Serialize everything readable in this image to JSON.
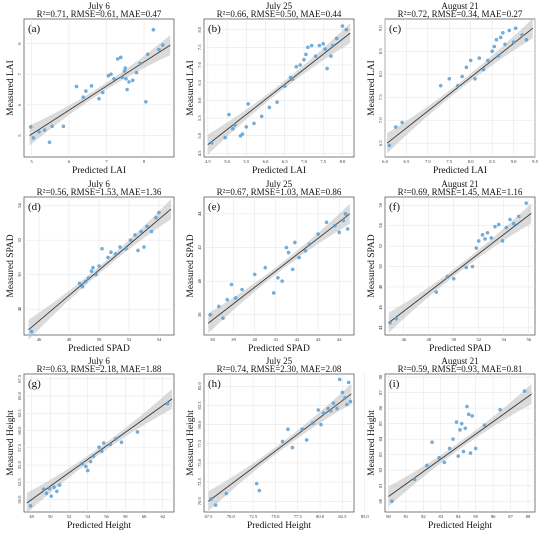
{
  "colors": {
    "points": "#5b9fd3",
    "fit_line": "#3a3a3a",
    "band": "#bdbdbd",
    "grid": "#e3e3e3"
  },
  "chart_data": [
    {
      "type": "scatter",
      "letter": "(a)",
      "title": "July 6",
      "metrics": "R²=0.71, RMSE=0.61, MAE=0.47",
      "xlabel": "Predicted LAI",
      "ylabel": "Measured LAI",
      "xlim": [
        4.8,
        8.8
      ],
      "ylim": [
        4.3,
        8.8
      ],
      "xticks": [
        "5",
        "6",
        "7",
        "8"
      ],
      "xtick_values": [
        5,
        6,
        7,
        8
      ],
      "yticks": [
        "5",
        "6",
        "7",
        "8"
      ],
      "ytick_values": [
        5,
        6,
        7,
        8
      ],
      "fit": {
        "x": [
          4.95,
          8.7
        ],
        "y": [
          5.0,
          7.95
        ]
      },
      "x": [
        4.98,
        5.05,
        5.2,
        5.35,
        5.48,
        5.55,
        5.85,
        6.2,
        6.38,
        6.45,
        6.6,
        6.8,
        6.9,
        7.05,
        7.12,
        7.2,
        7.3,
        7.38,
        7.42,
        7.48,
        7.5,
        7.52,
        7.55,
        7.6,
        7.7,
        7.8,
        7.9,
        8.05,
        8.1,
        8.25,
        8.4,
        8.5
      ],
      "y": [
        5.28,
        4.92,
        5.12,
        5.18,
        4.78,
        5.3,
        5.3,
        6.6,
        6.25,
        6.45,
        6.62,
        6.2,
        6.4,
        6.95,
        7.0,
        6.85,
        7.5,
        7.55,
        6.9,
        7.1,
        7.2,
        6.85,
        6.5,
        6.75,
        6.8,
        7.05,
        7.35,
        6.1,
        7.65,
        8.45,
        7.8,
        7.95
      ]
    },
    {
      "type": "scatter",
      "letter": "(b)",
      "title": "July 25",
      "metrics": "R²=0.66, RMSE=0.50, MAE=0.44",
      "xlabel": "Predicted LAI",
      "ylabel": "Measured LAI",
      "xlim": [
        4.4,
        8.3
      ],
      "ylim": [
        4.4,
        8.3
      ],
      "xticks": [
        "4.5",
        "5.0",
        "5.5",
        "6.0",
        "6.5",
        "7.0",
        "7.5",
        "8.0"
      ],
      "xtick_values": [
        4.5,
        5.0,
        5.5,
        6.0,
        6.5,
        7.0,
        7.5,
        8.0
      ],
      "yticks": [
        "4.5",
        "5.0",
        "5.5",
        "6.0",
        "6.5",
        "7.0",
        "7.5",
        "8.0"
      ],
      "ytick_values": [
        4.5,
        5.0,
        5.5,
        6.0,
        6.5,
        7.0,
        7.5,
        8.0
      ],
      "fit": {
        "x": [
          4.5,
          8.2
        ],
        "y": [
          4.75,
          7.9
        ]
      },
      "x": [
        4.6,
        4.95,
        5.05,
        5.15,
        5.2,
        5.35,
        5.4,
        5.5,
        5.55,
        5.7,
        5.9,
        6.1,
        6.3,
        6.5,
        6.65,
        6.7,
        6.8,
        6.9,
        7.0,
        7.05,
        7.1,
        7.2,
        7.3,
        7.4,
        7.5,
        7.55,
        7.6,
        7.7,
        7.75,
        7.85,
        8.0,
        8.1
      ],
      "y": [
        4.8,
        4.95,
        5.6,
        5.2,
        5.3,
        5.0,
        5.05,
        5.25,
        5.9,
        5.35,
        5.55,
        5.8,
        5.95,
        6.4,
        6.65,
        6.6,
        6.95,
        7.0,
        7.15,
        7.3,
        7.5,
        7.55,
        7.25,
        7.55,
        7.6,
        7.45,
        6.9,
        7.25,
        7.55,
        7.75,
        8.1,
        8.0
      ]
    },
    {
      "type": "scatter",
      "letter": "(c)",
      "title": "August 21",
      "metrics": "R²=0.72, RMSE=0.34, MAE=0.27",
      "xlabel": "Predicted LAI",
      "ylabel": "Measured LAI",
      "xlim": [
        6.0,
        9.5
      ],
      "ylim": [
        6.2,
        9.2
      ],
      "xticks": [
        "6.0",
        "6.5",
        "7.0",
        "7.5",
        "8.0",
        "8.5",
        "9.0",
        "9.5"
      ],
      "xtick_values": [
        6.0,
        6.5,
        7.0,
        7.5,
        8.0,
        8.5,
        9.0,
        9.5
      ],
      "yticks": [
        "6.5",
        "7.0",
        "7.5",
        "8.0",
        "8.5",
        "9.0"
      ],
      "ytick_values": [
        6.5,
        7.0,
        7.5,
        8.0,
        8.5,
        9.0
      ],
      "fit": {
        "x": [
          6.05,
          9.45
        ],
        "y": [
          6.5,
          9.0
        ]
      },
      "x": [
        6.1,
        6.25,
        6.4,
        7.3,
        7.5,
        7.7,
        7.8,
        7.9,
        8.0,
        8.1,
        8.2,
        8.3,
        8.4,
        8.5,
        8.55,
        8.6,
        8.65,
        8.7,
        8.75,
        8.8,
        8.9,
        9.0,
        9.05,
        9.2,
        9.3
      ],
      "y": [
        6.45,
        6.85,
        6.95,
        7.75,
        7.9,
        7.75,
        7.95,
        8.15,
        8.3,
        7.9,
        8.35,
        8.1,
        8.3,
        8.5,
        8.6,
        8.75,
        8.4,
        8.8,
        8.9,
        8.65,
        8.95,
        8.7,
        9.0,
        8.85,
        8.75
      ]
    },
    {
      "type": "scatter",
      "letter": "(d)",
      "title": "July 6",
      "metrics": "R²=0.56, RMSE=1.53, MAE=1.36",
      "xlabel": "Predicted SPAD",
      "ylabel": "Measured SPAD",
      "xlim": [
        45,
        55
      ],
      "ylim": [
        46.5,
        54.5
      ],
      "xticks": [
        "46",
        "48",
        "50",
        "52",
        "54"
      ],
      "xtick_values": [
        46,
        48,
        50,
        52,
        54
      ],
      "yticks": [
        "48",
        "50",
        "52",
        "54"
      ],
      "ytick_values": [
        48,
        50,
        52,
        54
      ],
      "fit": {
        "x": [
          45.3,
          54.8
        ],
        "y": [
          46.8,
          53.8
        ]
      },
      "x": [
        45.5,
        48.7,
        48.9,
        49.1,
        49.3,
        49.5,
        49.6,
        49.8,
        50.0,
        50.2,
        50.6,
        50.8,
        51.1,
        51.4,
        51.8,
        52.1,
        52.4,
        52.6,
        52.8,
        53.0,
        53.2,
        53.5,
        53.8,
        54.0
      ],
      "y": [
        46.7,
        49.5,
        49.3,
        49.6,
        49.8,
        50.2,
        50.4,
        50.0,
        50.5,
        51.5,
        51.0,
        51.3,
        51.2,
        51.6,
        51.5,
        52.0,
        52.3,
        51.4,
        52.5,
        51.6,
        52.8,
        52.5,
        53.3,
        53.6
      ]
    },
    {
      "type": "scatter",
      "letter": "(e)",
      "title": "July 25",
      "metrics": "R²=0.67, RMSE=1.03, MAE=0.86",
      "xlabel": "Predicted SPAD",
      "ylabel": "Measured SPAD",
      "xlim": [
        37.6,
        44.7
      ],
      "ylim": [
        36.8,
        45.0
      ],
      "xticks": [
        "38",
        "39",
        "40",
        "41",
        "42",
        "43",
        "44"
      ],
      "xtick_values": [
        38,
        39,
        40,
        41,
        42,
        43,
        44
      ],
      "yticks": [
        "38",
        "40",
        "42",
        "44"
      ],
      "ytick_values": [
        38,
        40,
        42,
        44
      ],
      "fit": {
        "x": [
          37.8,
          44.5
        ],
        "y": [
          37.5,
          44.0
        ]
      },
      "x": [
        37.9,
        38.3,
        38.5,
        38.7,
        38.9,
        39.1,
        39.4,
        40.0,
        40.5,
        40.9,
        41.1,
        41.3,
        41.5,
        41.6,
        41.8,
        41.9,
        42.1,
        42.4,
        42.6,
        43.0,
        43.4,
        43.8,
        44.0,
        44.2,
        44.3,
        44.4
      ],
      "y": [
        38.0,
        38.5,
        37.8,
        38.9,
        39.8,
        39.0,
        39.5,
        40.4,
        40.8,
        39.3,
        40.2,
        40.0,
        42.0,
        41.7,
        40.7,
        42.3,
        41.4,
        41.8,
        42.2,
        42.8,
        43.5,
        43.3,
        42.9,
        43.6,
        44.0,
        43.1
      ]
    },
    {
      "type": "scatter",
      "letter": "(f)",
      "title": "August 21",
      "metrics": "R²=0.69, RMSE=1.45, MAE=1.16",
      "xlabel": "Predicted SPAD",
      "ylabel": "Measured SPAD",
      "xlim": [
        44.5,
        56.5
      ],
      "ylim": [
        43.3,
        56.8
      ],
      "xticks": [
        "46",
        "48",
        "50",
        "52",
        "54",
        "56"
      ],
      "xtick_values": [
        46,
        48,
        50,
        52,
        54,
        56
      ],
      "yticks": [
        "44",
        "46",
        "48",
        "50",
        "52",
        "54",
        "56"
      ],
      "ytick_values": [
        44,
        46,
        48,
        50,
        52,
        54,
        56
      ],
      "fit": {
        "x": [
          44.8,
          56.2
        ],
        "y": [
          44.5,
          55.2
        ]
      },
      "x": [
        44.9,
        45.4,
        48.6,
        49.5,
        50.0,
        51.0,
        51.5,
        51.8,
        52.0,
        52.3,
        52.5,
        52.7,
        53.0,
        53.3,
        53.6,
        53.9,
        54.2,
        54.5,
        54.8,
        55.2,
        55.8
      ],
      "y": [
        44.5,
        44.9,
        47.5,
        49.0,
        48.8,
        49.9,
        50.0,
        51.8,
        52.5,
        53.1,
        52.7,
        53.3,
        52.8,
        53.9,
        54.1,
        52.5,
        53.8,
        54.6,
        54.2,
        54.9,
        56.2
      ]
    },
    {
      "type": "scatter",
      "letter": "(g)",
      "title": "July 6",
      "metrics": "R²=0.63, RMSE=2.18, MAE=1.88",
      "xlabel": "Predicted Height",
      "ylabel": "Measured Height",
      "xlim": [
        47.2,
        63.2
      ],
      "ylim": [
        48.2,
        68.2
      ],
      "xticks": [
        "48",
        "50",
        "52",
        "54",
        "56",
        "58",
        "60",
        "62"
      ],
      "xtick_values": [
        48,
        50,
        52,
        54,
        56,
        58,
        60,
        62
      ],
      "yticks": [
        "50.0",
        "52.5",
        "55.0",
        "57.5",
        "60.0",
        "62.5",
        "65.0",
        "67.5"
      ],
      "ytick_values": [
        50.0,
        52.5,
        55.0,
        57.5,
        60.0,
        62.5,
        65.0,
        67.5
      ],
      "fit": {
        "x": [
          47.5,
          63.0
        ],
        "y": [
          49.5,
          64.6
        ]
      },
      "x": [
        47.9,
        49.3,
        49.6,
        49.9,
        50.1,
        50.4,
        50.7,
        51.0,
        53.4,
        53.8,
        54.0,
        54.3,
        54.6,
        55.2,
        55.5,
        55.7,
        56.4,
        57.0,
        57.6,
        59.3,
        62.5
      ],
      "y": [
        49.1,
        51.5,
        50.9,
        51.6,
        50.5,
        51.8,
        51.2,
        52.1,
        55.2,
        54.8,
        54.2,
        55.5,
        56.3,
        57.6,
        57.0,
        58.2,
        58.0,
        58.8,
        58.3,
        59.8,
        63.9
      ]
    },
    {
      "type": "scatter",
      "letter": "(h)",
      "title": "July 25",
      "metrics": "R²=0.74, RMSE=2.30, MAE=2.08",
      "xlabel": "Predicted Height",
      "ylabel": "Measured Height",
      "xlim": [
        67.0,
        83.8
      ],
      "ylim": [
        68.6,
        86.6
      ],
      "xticks": [
        "67.5",
        "70.0",
        "72.5",
        "75.0",
        "77.5",
        "80.0",
        "82.5",
        "85.0"
      ],
      "xtick_values": [
        67.5,
        70.0,
        72.5,
        75.0,
        77.5,
        80.0,
        82.5,
        85.0
      ],
      "yticks": [
        "70.0",
        "72.5",
        "75.0",
        "77.5",
        "80.0",
        "82.5",
        "85.0"
      ],
      "ytick_values": [
        70.0,
        72.5,
        75.0,
        77.5,
        80.0,
        82.5,
        85.0
      ],
      "fit": {
        "x": [
          67.5,
          83.5
        ],
        "y": [
          70.0,
          84.0
        ]
      },
      "x": [
        67.8,
        68.3,
        69.5,
        72.9,
        73.2,
        75.8,
        76.4,
        76.9,
        78.0,
        78.5,
        79.2,
        79.8,
        80.1,
        80.4,
        80.9,
        81.2,
        81.5,
        81.9,
        82.2,
        82.5,
        82.8,
        83.0,
        83.2,
        83.4
      ],
      "y": [
        70.3,
        69.5,
        71.0,
        72.3,
        71.4,
        77.8,
        79.4,
        77.0,
        79.4,
        78.0,
        80.2,
        81.9,
        80.0,
        81.5,
        82.1,
        81.8,
        82.8,
        82.1,
        85.9,
        84.2,
        83.5,
        82.6,
        85.5,
        83.0
      ]
    },
    {
      "type": "scatter",
      "letter": "(i)",
      "title": "August 21",
      "metrics": "R²=0.59, RMSE=0.93, MAE=0.81",
      "xlabel": "Predicted Height",
      "ylabel": "Measured Height",
      "xlim": [
        79.8,
        88.4
      ],
      "ylim": [
        79.3,
        88.2
      ],
      "xticks": [
        "80",
        "81",
        "82",
        "83",
        "84",
        "85",
        "86",
        "87",
        "88"
      ],
      "xtick_values": [
        80,
        81,
        82,
        83,
        84,
        85,
        86,
        87,
        88
      ],
      "yticks": [
        "80",
        "81",
        "82",
        "83",
        "84",
        "85",
        "86",
        "87",
        "88"
      ],
      "ytick_values": [
        80,
        81,
        82,
        83,
        84,
        85,
        86,
        87,
        88
      ],
      "fit": {
        "x": [
          80.0,
          88.2
        ],
        "y": [
          80.3,
          86.9
        ]
      },
      "x": [
        80.2,
        81.5,
        82.2,
        82.5,
        82.9,
        83.2,
        83.5,
        83.7,
        83.9,
        84.0,
        84.1,
        84.2,
        84.3,
        84.4,
        84.5,
        84.6,
        84.7,
        84.8,
        85.0,
        85.5,
        86.4,
        87.8
      ],
      "y": [
        80.0,
        81.4,
        82.3,
        83.8,
        82.8,
        82.5,
        83.4,
        84.0,
        85.1,
        82.9,
        84.6,
        85.0,
        83.2,
        84.7,
        86.1,
        85.6,
        83.1,
        85.5,
        83.4,
        84.9,
        85.9,
        87.1
      ]
    }
  ]
}
